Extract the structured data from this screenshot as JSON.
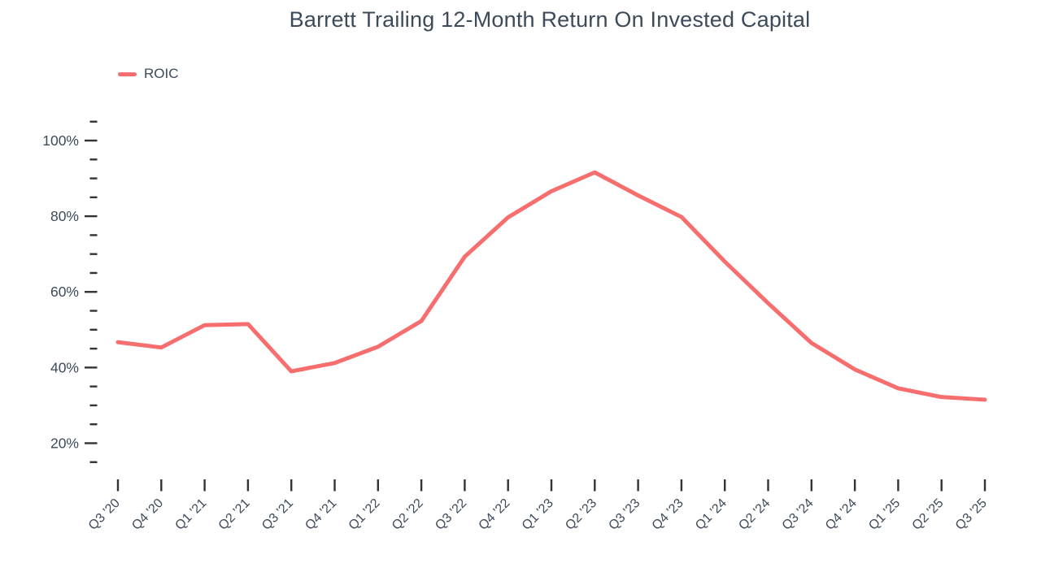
{
  "page_title": "Barrett Trailing 12-Month Return On Invested Capital",
  "legend": {
    "items": [
      {
        "label": "ROIC",
        "color": "#f76e6e"
      }
    ]
  },
  "colors": {
    "series_line": "#f76e6e",
    "axis_text": "#3d4a59",
    "tick": "#333333",
    "background": "#ffffff"
  },
  "chart_data": {
    "type": "line",
    "title": "Barrett Trailing 12-Month Return On Invested Capital",
    "categories": [
      "Q3 '20",
      "Q4 '20",
      "Q1 '21",
      "Q2 '21",
      "Q3 '21",
      "Q4 '21",
      "Q1 '22",
      "Q2 '22",
      "Q3 '22",
      "Q4 '22",
      "Q1 '23",
      "Q2 '23",
      "Q3 '23",
      "Q4 '23",
      "Q1 '24",
      "Q2 '24",
      "Q3 '24",
      "Q4 '24",
      "Q1 '25",
      "Q2 '25",
      "Q3 '25"
    ],
    "series": [
      {
        "name": "ROIC",
        "color": "#f76e6e",
        "values": [
          46.7,
          45.3,
          51.2,
          51.5,
          39.0,
          41.2,
          45.5,
          52.3,
          69.3,
          79.7,
          86.6,
          91.6,
          85.5,
          79.8,
          68.0,
          57.0,
          46.5,
          39.5,
          34.5,
          32.2,
          31.5
        ]
      }
    ],
    "xlabel": "",
    "ylabel": "",
    "ylim": [
      15,
      105
    ],
    "ytick_step": 5,
    "ytick_labeled_values": [
      20,
      40,
      60,
      80,
      100
    ],
    "ylabel_suffix": "%",
    "grid": false,
    "markers": "none",
    "legend_position": "top-left",
    "x_label_rotation": -45
  }
}
